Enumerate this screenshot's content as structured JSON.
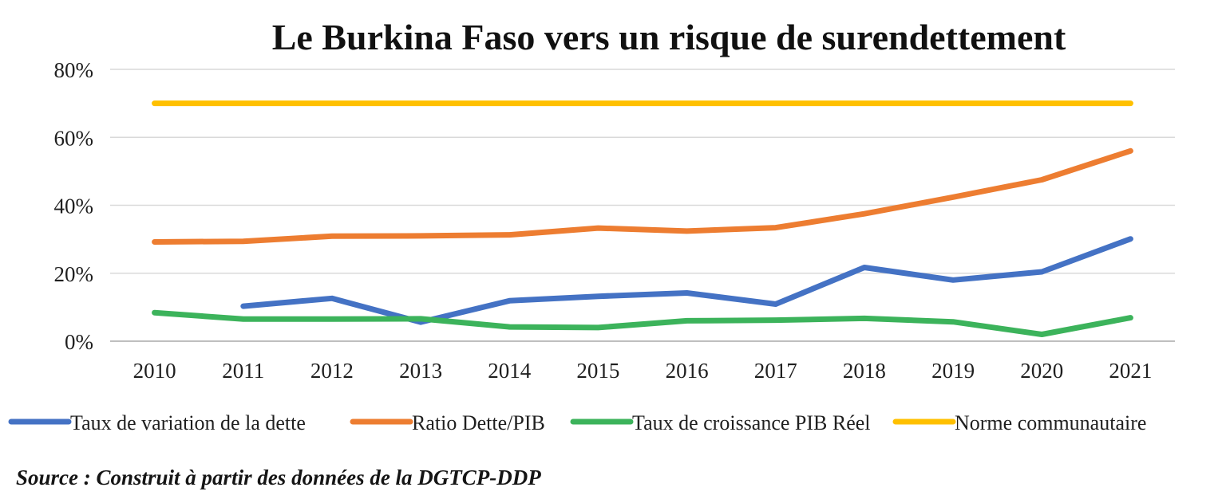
{
  "chart_data": {
    "type": "line",
    "title": "Le Burkina Faso vers un risque de surendettement",
    "categories": [
      "2010",
      "2011",
      "2012",
      "2013",
      "2014",
      "2015",
      "2016",
      "2017",
      "2018",
      "2019",
      "2020",
      "2021"
    ],
    "y_ticks": [
      "0%",
      "20%",
      "40%",
      "60%",
      "80%"
    ],
    "ylim": [
      0,
      80
    ],
    "unit": "%",
    "grid": true,
    "legend_position": "bottom",
    "series": [
      {
        "name": "Taux de variation de la dette",
        "color": "#4472C4",
        "values": [
          null,
          10.3,
          12.6,
          5.6,
          11.9,
          13.2,
          14.2,
          10.9,
          21.7,
          18.0,
          20.4,
          30.1
        ]
      },
      {
        "name": "Ratio Dette/PIB",
        "color": "#ED7D31",
        "values": [
          29.2,
          29.4,
          30.9,
          31.0,
          31.3,
          33.3,
          32.4,
          33.4,
          37.5,
          42.4,
          47.5,
          56.0
        ]
      },
      {
        "name": "Taux de croissance PIB Réel",
        "color": "#3CB35B",
        "values": [
          8.4,
          6.5,
          6.5,
          6.6,
          4.2,
          4.0,
          6.0,
          6.2,
          6.7,
          5.7,
          2.0,
          6.9
        ]
      },
      {
        "name": "Norme communautaire",
        "color": "#FFC000",
        "values": [
          70,
          70,
          70,
          70,
          70,
          70,
          70,
          70,
          70,
          70,
          70,
          70
        ]
      }
    ]
  },
  "source_text": "Source : Construit à partir des données de la DGTCP-DDP"
}
